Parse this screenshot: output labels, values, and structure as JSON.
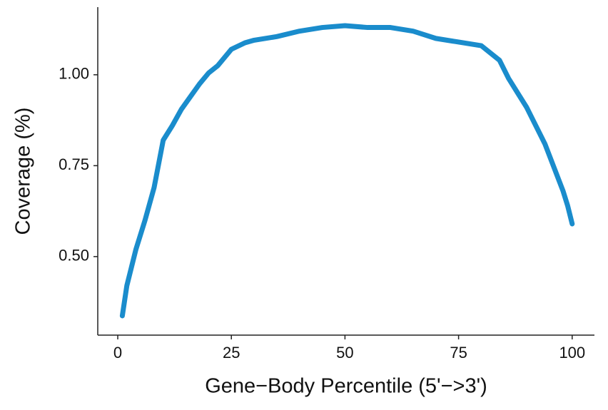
{
  "chart_data": {
    "type": "line",
    "xlabel": "Gene−Body Percentile (5'−>3')",
    "ylabel": "Coverage (%)",
    "x": [
      1,
      2,
      3,
      4,
      6,
      8,
      10,
      12,
      14,
      16,
      18,
      20,
      22,
      25,
      28,
      30,
      35,
      40,
      45,
      50,
      55,
      60,
      65,
      70,
      75,
      80,
      84,
      86,
      88,
      90,
      92,
      94,
      96,
      98,
      99,
      100
    ],
    "series": [
      {
        "color": "#1a8ccc",
        "values": [
          0.337,
          0.42,
          0.47,
          0.52,
          0.6,
          0.69,
          0.82,
          0.86,
          0.905,
          0.94,
          0.975,
          1.005,
          1.025,
          1.07,
          1.088,
          1.095,
          1.105,
          1.12,
          1.13,
          1.135,
          1.13,
          1.13,
          1.12,
          1.1,
          1.09,
          1.08,
          1.04,
          0.99,
          0.95,
          0.91,
          0.86,
          0.81,
          0.745,
          0.68,
          0.64,
          0.59
        ]
      }
    ],
    "xlim": [
      -4.4,
      104.9
    ],
    "ylim": [
      0.284,
      1.186
    ],
    "xticks": [
      0,
      25,
      50,
      75,
      100
    ],
    "yticks": [
      {
        "value": 0.5,
        "label": "0.50"
      },
      {
        "value": 0.75,
        "label": "0.75"
      },
      {
        "value": 1.0,
        "label": "1.00"
      }
    ]
  }
}
